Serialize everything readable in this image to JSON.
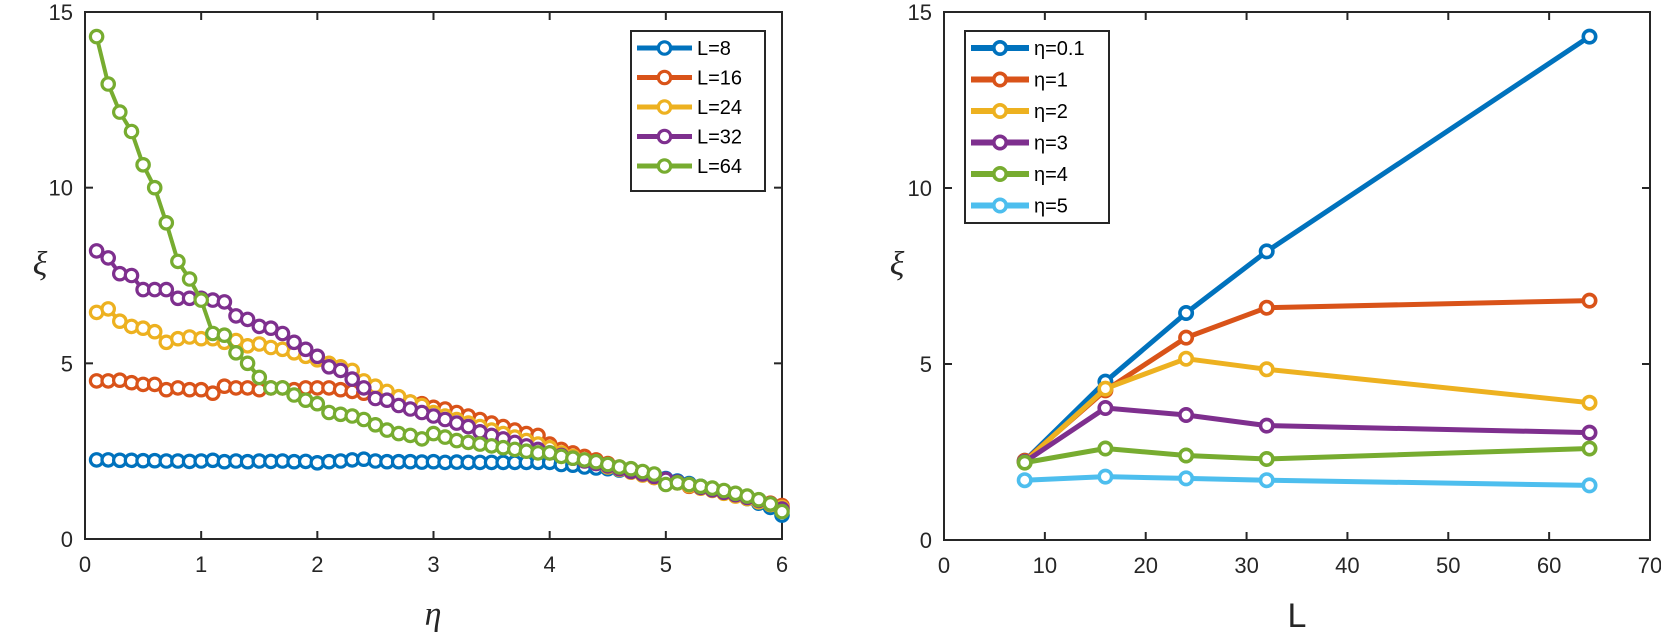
{
  "chart_data": [
    {
      "type": "line",
      "xlabel": "η",
      "ylabel": "ξ",
      "xlim": [
        0,
        6
      ],
      "ylim": [
        0,
        15
      ],
      "xticks": [
        "0",
        "1",
        "2",
        "3",
        "4",
        "5",
        "6"
      ],
      "yticks": [
        "0",
        "5",
        "10",
        "15"
      ],
      "legend_position": "top-right",
      "series": [
        {
          "name": "L=8",
          "color": "#0072BD",
          "x": [
            0.1,
            0.2,
            0.3,
            0.4,
            0.5,
            0.6,
            0.7,
            0.8,
            0.9,
            1.0,
            1.1,
            1.2,
            1.3,
            1.4,
            1.5,
            1.6,
            1.7,
            1.8,
            1.9,
            2.0,
            2.1,
            2.2,
            2.3,
            2.4,
            2.5,
            2.6,
            2.7,
            2.8,
            2.9,
            3.0,
            3.1,
            3.2,
            3.3,
            3.4,
            3.5,
            3.6,
            3.7,
            3.8,
            3.9,
            4.0,
            4.1,
            4.2,
            4.3,
            4.4,
            4.5,
            4.6,
            4.7,
            4.8,
            4.9,
            5.0,
            5.1,
            5.2,
            5.3,
            5.4,
            5.5,
            5.6,
            5.7,
            5.8,
            5.9,
            6.0
          ],
          "y": [
            2.25,
            2.25,
            2.24,
            2.24,
            2.23,
            2.23,
            2.22,
            2.22,
            2.21,
            2.22,
            2.24,
            2.2,
            2.22,
            2.2,
            2.22,
            2.21,
            2.22,
            2.2,
            2.21,
            2.17,
            2.2,
            2.22,
            2.25,
            2.27,
            2.22,
            2.2,
            2.2,
            2.2,
            2.19,
            2.2,
            2.18,
            2.19,
            2.18,
            2.18,
            2.18,
            2.18,
            2.18,
            2.18,
            2.18,
            2.18,
            2.12,
            2.1,
            2.05,
            2.02,
            2.0,
            1.96,
            1.92,
            1.86,
            1.8,
            1.72,
            1.65,
            1.58,
            1.5,
            1.42,
            1.34,
            1.25,
            1.15,
            1.02,
            0.9,
            0.68
          ]
        },
        {
          "name": "L=16",
          "color": "#D95319",
          "x": [
            0.1,
            0.2,
            0.3,
            0.4,
            0.5,
            0.6,
            0.7,
            0.8,
            0.9,
            1.0,
            1.1,
            1.2,
            1.3,
            1.4,
            1.5,
            1.6,
            1.7,
            1.8,
            1.9,
            2.0,
            2.1,
            2.2,
            2.3,
            2.4,
            2.5,
            2.6,
            2.7,
            2.8,
            2.9,
            3.0,
            3.1,
            3.2,
            3.3,
            3.4,
            3.5,
            3.6,
            3.7,
            3.8,
            3.9,
            4.0,
            4.1,
            4.2,
            4.3,
            4.4,
            4.5,
            4.6,
            4.7,
            4.8,
            4.9,
            5.0,
            5.1,
            5.2,
            5.3,
            5.4,
            5.5,
            5.6,
            5.7,
            5.8,
            5.9,
            6.0
          ],
          "y": [
            4.5,
            4.5,
            4.52,
            4.45,
            4.4,
            4.4,
            4.25,
            4.3,
            4.25,
            4.25,
            4.15,
            4.35,
            4.3,
            4.3,
            4.25,
            4.3,
            4.3,
            4.25,
            4.3,
            4.3,
            4.3,
            4.25,
            4.2,
            4.15,
            4.05,
            4.0,
            4.0,
            3.9,
            3.85,
            3.75,
            3.7,
            3.6,
            3.5,
            3.4,
            3.3,
            3.2,
            3.1,
            3.0,
            2.95,
            2.7,
            2.55,
            2.45,
            2.35,
            2.25,
            2.15,
            2.05,
            1.95,
            1.85,
            1.75,
            1.65,
            1.6,
            1.5,
            1.45,
            1.4,
            1.35,
            1.28,
            1.2,
            1.1,
            1.02,
            0.95
          ]
        },
        {
          "name": "L=24",
          "color": "#EDB120",
          "x": [
            0.1,
            0.2,
            0.3,
            0.4,
            0.5,
            0.6,
            0.7,
            0.8,
            0.9,
            1.0,
            1.1,
            1.2,
            1.3,
            1.4,
            1.5,
            1.6,
            1.7,
            1.8,
            1.9,
            2.0,
            2.1,
            2.2,
            2.3,
            2.4,
            2.5,
            2.6,
            2.7,
            2.8,
            2.9,
            3.0,
            3.1,
            3.2,
            3.3,
            3.4,
            3.5,
            3.6,
            3.7,
            3.8,
            3.9,
            4.0,
            4.1,
            4.2,
            4.3,
            4.4,
            4.5,
            4.6,
            4.7,
            4.8,
            4.9,
            5.0,
            5.1,
            5.2,
            5.3,
            5.4,
            5.5,
            5.6,
            5.7,
            5.8,
            5.9,
            6.0
          ],
          "y": [
            6.45,
            6.55,
            6.2,
            6.05,
            6.0,
            5.9,
            5.6,
            5.7,
            5.75,
            5.7,
            5.7,
            5.6,
            5.65,
            5.5,
            5.55,
            5.45,
            5.4,
            5.3,
            5.2,
            5.1,
            5.0,
            4.9,
            4.8,
            4.5,
            4.35,
            4.2,
            4.05,
            3.9,
            3.8,
            3.6,
            3.5,
            3.4,
            3.3,
            3.2,
            3.1,
            3.0,
            2.9,
            2.8,
            2.7,
            2.6,
            2.45,
            2.35,
            2.25,
            2.15,
            2.05,
            1.98,
            1.9,
            1.82,
            1.75,
            1.68,
            1.6,
            1.52,
            1.45,
            1.38,
            1.3,
            1.22,
            1.15,
            1.06,
            0.98,
            0.9
          ]
        },
        {
          "name": "L=32",
          "color": "#7E2F8E",
          "x": [
            0.1,
            0.2,
            0.3,
            0.4,
            0.5,
            0.6,
            0.7,
            0.8,
            0.9,
            1.0,
            1.1,
            1.2,
            1.3,
            1.4,
            1.5,
            1.6,
            1.7,
            1.8,
            1.9,
            2.0,
            2.1,
            2.2,
            2.3,
            2.4,
            2.5,
            2.6,
            2.7,
            2.8,
            2.9,
            3.0,
            3.1,
            3.2,
            3.3,
            3.4,
            3.5,
            3.6,
            3.7,
            3.8,
            3.9,
            4.0,
            4.1,
            4.2,
            4.3,
            4.4,
            4.5,
            4.6,
            4.7,
            4.8,
            4.9,
            5.0,
            5.1,
            5.2,
            5.3,
            5.4,
            5.5,
            5.6,
            5.7,
            5.8,
            5.9,
            6.0
          ],
          "y": [
            8.2,
            8.0,
            7.55,
            7.5,
            7.1,
            7.1,
            7.1,
            6.85,
            6.85,
            6.85,
            6.8,
            6.75,
            6.35,
            6.25,
            6.05,
            6.0,
            5.85,
            5.6,
            5.4,
            5.2,
            4.9,
            4.8,
            4.55,
            4.3,
            4.0,
            3.95,
            3.8,
            3.7,
            3.6,
            3.5,
            3.4,
            3.3,
            3.2,
            3.05,
            2.95,
            2.85,
            2.75,
            2.65,
            2.55,
            2.45,
            2.38,
            2.3,
            2.22,
            2.15,
            2.08,
            2.0,
            1.92,
            1.85,
            1.78,
            1.7,
            1.62,
            1.55,
            1.47,
            1.4,
            1.33,
            1.26,
            1.18,
            1.1,
            1.0,
            0.85
          ]
        },
        {
          "name": "L=64",
          "color": "#77AC30",
          "x": [
            0.1,
            0.2,
            0.3,
            0.4,
            0.5,
            0.6,
            0.7,
            0.8,
            0.9,
            1.0,
            1.1,
            1.2,
            1.3,
            1.4,
            1.5,
            1.6,
            1.7,
            1.8,
            1.9,
            2.0,
            2.1,
            2.2,
            2.3,
            2.4,
            2.5,
            2.6,
            2.7,
            2.8,
            2.9,
            3.0,
            3.1,
            3.2,
            3.3,
            3.4,
            3.5,
            3.6,
            3.7,
            3.8,
            3.9,
            4.0,
            4.1,
            4.2,
            4.3,
            4.4,
            4.5,
            4.6,
            4.7,
            4.8,
            4.9,
            5.0,
            5.1,
            5.2,
            5.3,
            5.4,
            5.5,
            5.6,
            5.7,
            5.8,
            5.9,
            6.0
          ],
          "y": [
            14.3,
            12.95,
            12.15,
            11.6,
            10.65,
            10.0,
            9.0,
            7.9,
            7.4,
            6.8,
            5.85,
            5.8,
            5.3,
            5.0,
            4.6,
            4.3,
            4.3,
            4.1,
            3.95,
            3.85,
            3.6,
            3.55,
            3.5,
            3.4,
            3.25,
            3.1,
            3.0,
            2.95,
            2.85,
            3.0,
            2.9,
            2.8,
            2.75,
            2.7,
            2.65,
            2.6,
            2.55,
            2.5,
            2.45,
            2.45,
            2.35,
            2.3,
            2.25,
            2.2,
            2.12,
            2.05,
            2.0,
            1.92,
            1.85,
            1.55,
            1.6,
            1.55,
            1.5,
            1.45,
            1.38,
            1.3,
            1.22,
            1.12,
            1.0,
            0.78
          ]
        }
      ]
    },
    {
      "type": "line",
      "xlabel": "L",
      "ylabel": "ξ",
      "xlim": [
        0,
        70
      ],
      "ylim": [
        0,
        15
      ],
      "xticks": [
        "0",
        "10",
        "20",
        "30",
        "40",
        "50",
        "60",
        "70"
      ],
      "yticks": [
        "0",
        "5",
        "10",
        "15"
      ],
      "legend_position": "top-left",
      "series": [
        {
          "name": "η=0.1",
          "color": "#0072BD",
          "x": [
            8,
            16,
            24,
            32,
            64
          ],
          "y": [
            2.25,
            4.5,
            6.45,
            8.2,
            14.3
          ]
        },
        {
          "name": "η=1",
          "color": "#D95319",
          "x": [
            8,
            16,
            24,
            32,
            64
          ],
          "y": [
            2.25,
            4.25,
            5.75,
            6.6,
            6.8
          ]
        },
        {
          "name": "η=2",
          "color": "#EDB120",
          "x": [
            8,
            16,
            24,
            32,
            64
          ],
          "y": [
            2.22,
            4.3,
            5.15,
            4.85,
            3.9
          ]
        },
        {
          "name": "η=3",
          "color": "#7E2F8E",
          "x": [
            8,
            16,
            24,
            32,
            64
          ],
          "y": [
            2.22,
            3.75,
            3.55,
            3.25,
            3.05
          ]
        },
        {
          "name": "η=4",
          "color": "#77AC30",
          "x": [
            8,
            16,
            24,
            32,
            64
          ],
          "y": [
            2.2,
            2.6,
            2.4,
            2.3,
            2.6
          ]
        },
        {
          "name": "η=5",
          "color": "#4DBEEE",
          "x": [
            8,
            16,
            24,
            32,
            64
          ],
          "y": [
            1.7,
            1.8,
            1.75,
            1.7,
            1.55
          ]
        }
      ]
    }
  ]
}
